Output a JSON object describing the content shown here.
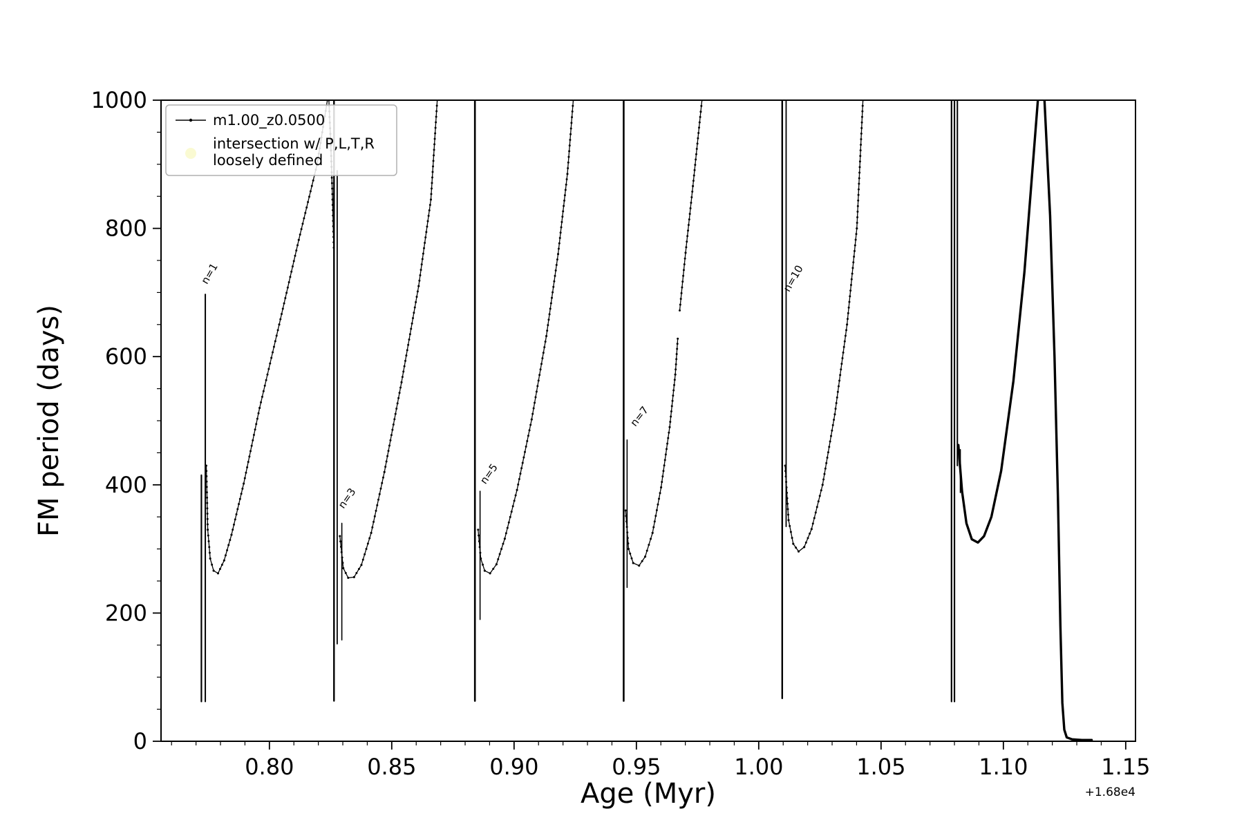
{
  "figure": {
    "background": "#ffffff"
  },
  "chart_data": {
    "type": "line",
    "title": "",
    "series_label": "m1.00_z0.0500",
    "xlabel": "Age (Myr)",
    "ylabel": "FM period (days)",
    "x_offset_text": "+1.68e4",
    "xlim": [
      0.7557,
      1.154
    ],
    "ylim": [
      0,
      1000
    ],
    "x_ticks": [
      0.8,
      0.85,
      0.9,
      0.95,
      1.0,
      1.05,
      1.1,
      1.15
    ],
    "x_tick_labels": [
      "0.80",
      "0.85",
      "0.90",
      "0.95",
      "1.00",
      "1.05",
      "1.10",
      "1.15"
    ],
    "y_ticks": [
      0,
      200,
      400,
      600,
      800,
      1000
    ],
    "y_tick_labels": [
      "0",
      "200",
      "400",
      "600",
      "800",
      "1000"
    ],
    "x_minor_step": 0.01,
    "y_minor_step": 50,
    "line_color": "#000000",
    "grid": false,
    "legend": {
      "position": "upper left",
      "entries": [
        {
          "type": "line",
          "label": "m1.00_z0.0500",
          "color": "#000000"
        },
        {
          "type": "dot",
          "label": "intersection w/ P,L,T,R\nloosely defined",
          "color": "#fafad2"
        }
      ]
    },
    "annotations": [
      {
        "text": "n=1",
        "x": 0.7745,
        "y": 712,
        "rot": -60
      },
      {
        "text": "n=3",
        "x": 0.8303,
        "y": 362,
        "rot": -55
      },
      {
        "text": "n=5",
        "x": 0.8883,
        "y": 400,
        "rot": -55
      },
      {
        "text": "n=7",
        "x": 0.9496,
        "y": 490,
        "rot": -52
      },
      {
        "text": "n=10",
        "x": 1.0124,
        "y": 700,
        "rot": -60
      }
    ],
    "series": [
      {
        "id": "pulse1-spike-a",
        "lw": 2.2,
        "dots": false,
        "points": [
          [
            0.7722,
            415
          ],
          [
            0.7722,
            62
          ]
        ]
      },
      {
        "id": "pulse1-spike-b",
        "lw": 2.0,
        "dots": false,
        "points": [
          [
            0.7738,
            697
          ],
          [
            0.7738,
            62
          ]
        ]
      },
      {
        "id": "pulse1-rise",
        "lw": 1.3,
        "dots": true,
        "points": [
          [
            0.7742,
            430
          ],
          [
            0.7748,
            330
          ],
          [
            0.7758,
            285
          ],
          [
            0.7772,
            266
          ],
          [
            0.779,
            262
          ],
          [
            0.7815,
            282
          ],
          [
            0.7845,
            322
          ],
          [
            0.7895,
            402
          ],
          [
            0.796,
            520
          ],
          [
            0.804,
            650
          ],
          [
            0.812,
            782
          ],
          [
            0.8195,
            900
          ],
          [
            0.8237,
            1000
          ]
        ]
      },
      {
        "id": "pulse1-fall",
        "lw": 1.3,
        "dots": true,
        "points": [
          [
            0.8243,
            1000
          ],
          [
            0.8251,
            930
          ],
          [
            0.8258,
            845
          ],
          [
            0.8263,
            770
          ]
        ]
      },
      {
        "id": "pulse2-spike-a",
        "lw": 2.4,
        "dots": false,
        "points": [
          [
            0.8264,
            1000
          ],
          [
            0.8264,
            63
          ]
        ]
      },
      {
        "id": "pulse2-spike-b",
        "lw": 1.8,
        "dots": false,
        "points": [
          [
            0.8277,
            890
          ],
          [
            0.8277,
            152
          ]
        ]
      },
      {
        "id": "pulse2-spike-c",
        "lw": 1.6,
        "dots": false,
        "points": [
          [
            0.8296,
            340
          ],
          [
            0.8296,
            158
          ]
        ]
      },
      {
        "id": "pulse2-rise",
        "lw": 1.3,
        "dots": true,
        "points": [
          [
            0.8288,
            320
          ],
          [
            0.8302,
            270
          ],
          [
            0.8322,
            255
          ],
          [
            0.8346,
            256
          ],
          [
            0.8376,
            275
          ],
          [
            0.8416,
            325
          ],
          [
            0.847,
            420
          ],
          [
            0.854,
            560
          ],
          [
            0.861,
            710
          ],
          [
            0.866,
            845
          ],
          [
            0.8686,
            1000
          ]
        ]
      },
      {
        "id": "pulse3-spike-a",
        "lw": 2.6,
        "dots": false,
        "points": [
          [
            0.884,
            1000
          ],
          [
            0.884,
            63
          ]
        ]
      },
      {
        "id": "pulse3-spike-b",
        "lw": 1.6,
        "dots": false,
        "points": [
          [
            0.8861,
            390
          ],
          [
            0.8861,
            190
          ]
        ]
      },
      {
        "id": "pulse3-rise",
        "lw": 1.3,
        "dots": true,
        "points": [
          [
            0.8853,
            330
          ],
          [
            0.8864,
            285
          ],
          [
            0.888,
            266
          ],
          [
            0.8902,
            262
          ],
          [
            0.8928,
            276
          ],
          [
            0.8962,
            316
          ],
          [
            0.9012,
            392
          ],
          [
            0.9072,
            502
          ],
          [
            0.9132,
            632
          ],
          [
            0.918,
            760
          ],
          [
            0.9218,
            885
          ],
          [
            0.9242,
            1000
          ]
        ]
      },
      {
        "id": "pulse4-spike-a",
        "lw": 2.6,
        "dots": false,
        "points": [
          [
            0.9448,
            1000
          ],
          [
            0.9448,
            63
          ]
        ]
      },
      {
        "id": "pulse4-spike-b",
        "lw": 1.6,
        "dots": false,
        "points": [
          [
            0.9462,
            470
          ],
          [
            0.9462,
            240
          ]
        ]
      },
      {
        "id": "pulse4-rise-a",
        "lw": 1.3,
        "dots": true,
        "points": [
          [
            0.9456,
            360
          ],
          [
            0.9468,
            300
          ],
          [
            0.9487,
            278
          ],
          [
            0.9511,
            274
          ],
          [
            0.9536,
            288
          ],
          [
            0.9566,
            325
          ],
          [
            0.9601,
            396
          ],
          [
            0.9636,
            490
          ],
          [
            0.9659,
            572
          ],
          [
            0.9669,
            628
          ]
        ]
      },
      {
        "id": "pulse4-rise-b",
        "lw": 1.3,
        "dots": true,
        "points": [
          [
            0.9677,
            672
          ],
          [
            0.9701,
            762
          ],
          [
            0.9731,
            866
          ],
          [
            0.9763,
            982
          ],
          [
            0.9768,
            1000
          ]
        ]
      },
      {
        "id": "pulse5-spike-a",
        "lw": 2.4,
        "dots": false,
        "points": [
          [
            1.0096,
            1000
          ],
          [
            1.0096,
            67
          ]
        ]
      },
      {
        "id": "pulse5-spike-b",
        "lw": 1.8,
        "dots": false,
        "points": [
          [
            1.0112,
            1000
          ],
          [
            1.0112,
            335
          ]
        ]
      },
      {
        "id": "pulse5-rise",
        "lw": 1.3,
        "dots": true,
        "points": [
          [
            1.0108,
            430
          ],
          [
            1.0122,
            345
          ],
          [
            1.0141,
            308
          ],
          [
            1.0163,
            296
          ],
          [
            1.0186,
            303
          ],
          [
            1.0216,
            331
          ],
          [
            1.0261,
            400
          ],
          [
            1.0311,
            510
          ],
          [
            1.0361,
            650
          ],
          [
            1.0401,
            800
          ],
          [
            1.0426,
            1000
          ]
        ]
      },
      {
        "id": "pulse6-spike-a",
        "lw": 2.2,
        "dots": false,
        "points": [
          [
            1.0788,
            1000
          ],
          [
            1.0788,
            62
          ]
        ]
      },
      {
        "id": "pulse6-spike-b",
        "lw": 2.2,
        "dots": false,
        "points": [
          [
            1.08,
            1000
          ],
          [
            1.08,
            62
          ]
        ]
      },
      {
        "id": "pulse6-spike-c",
        "lw": 2.0,
        "dots": false,
        "points": [
          [
            1.0812,
            1000
          ],
          [
            1.0812,
            430
          ]
        ]
      },
      {
        "id": "pulse6-spike-d",
        "lw": 1.6,
        "dots": false,
        "points": [
          [
            1.0824,
            455
          ],
          [
            1.0824,
            388
          ]
        ]
      },
      {
        "id": "pulse6-rise",
        "lw": 3.4,
        "dots": false,
        "points": [
          [
            1.0816,
            462
          ],
          [
            1.0831,
            390
          ],
          [
            1.0849,
            340
          ],
          [
            1.0871,
            315
          ],
          [
            1.0896,
            310
          ],
          [
            1.0921,
            320
          ],
          [
            1.0951,
            350
          ],
          [
            1.0991,
            422
          ],
          [
            1.1041,
            562
          ],
          [
            1.1086,
            732
          ],
          [
            1.1121,
            902
          ],
          [
            1.1141,
            1000
          ]
        ]
      },
      {
        "id": "pulse6-fall",
        "lw": 3.4,
        "dots": false,
        "points": [
          [
            1.1168,
            1000
          ],
          [
            1.1191,
            820
          ],
          [
            1.1209,
            600
          ],
          [
            1.1223,
            380
          ],
          [
            1.1233,
            180
          ],
          [
            1.1241,
            60
          ],
          [
            1.1249,
            18
          ],
          [
            1.1259,
            6
          ],
          [
            1.1281,
            3
          ],
          [
            1.1321,
            2
          ],
          [
            1.1361,
            2
          ]
        ]
      }
    ]
  }
}
